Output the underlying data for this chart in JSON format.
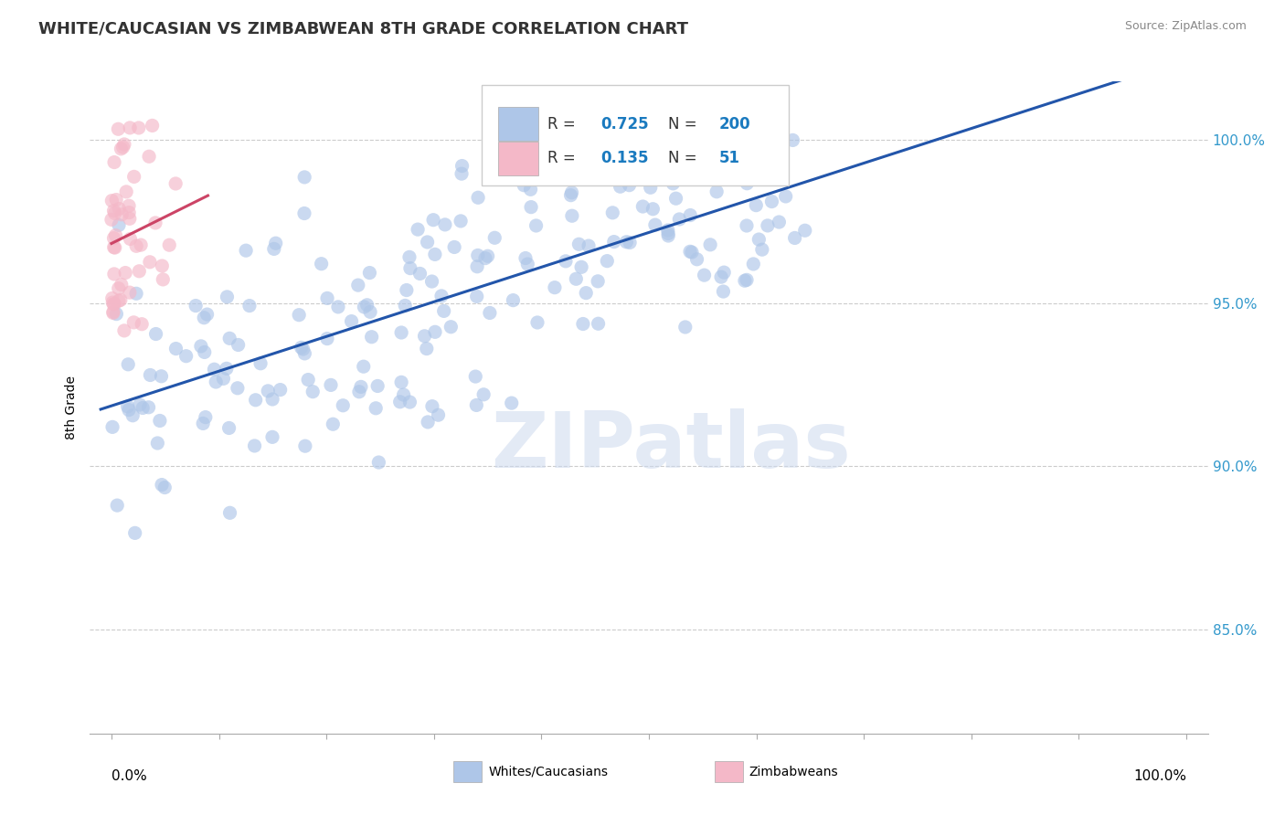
{
  "title": "WHITE/CAUCASIAN VS ZIMBABWEAN 8TH GRADE CORRELATION CHART",
  "source_text": "Source: ZipAtlas.com",
  "ylabel": "8th Grade",
  "ytick_labels": [
    "85.0%",
    "90.0%",
    "95.0%",
    "100.0%"
  ],
  "ytick_values": [
    0.85,
    0.9,
    0.95,
    1.0
  ],
  "ylim": [
    0.818,
    1.018
  ],
  "xlim": [
    -0.02,
    1.02
  ],
  "watermark_text": "ZIPatlas",
  "background_color": "#ffffff",
  "grid_color": "#cccccc",
  "blue_scatter_color": "#aec6e8",
  "blue_line_color": "#2255aa",
  "pink_scatter_color": "#f4b8c8",
  "pink_line_color": "#cc4466",
  "title_fontsize": 13,
  "axis_label_fontsize": 10,
  "tick_fontsize": 11,
  "legend_fontsize": 12,
  "source_fontsize": 9,
  "scatter_size": 120,
  "scatter_alpha": 0.65,
  "legend_label_blue": "Whites/Caucasians",
  "legend_label_pink": "Zimbabweans",
  "R_blue": 0.725,
  "N_blue": 200,
  "R_pink": 0.135,
  "N_pink": 51
}
